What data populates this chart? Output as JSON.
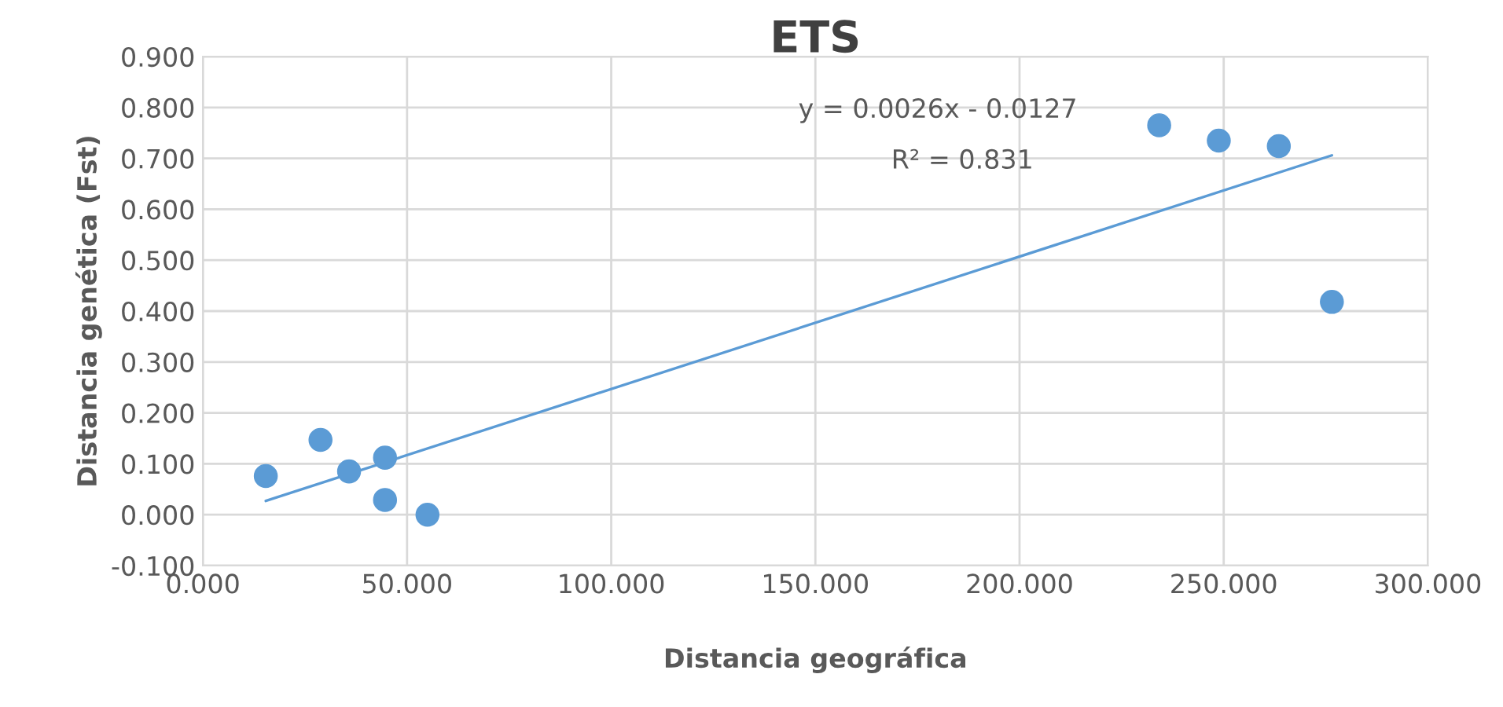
{
  "chart_data": {
    "type": "scatter",
    "title": "ETS",
    "xlabel": "Distancia geográfica",
    "ylabel": "Distancia genética (Fst)",
    "series": [
      {
        "color": "#5b9bd5",
        "marker": "circle",
        "x": [
          15.4,
          28.8,
          35.8,
          44.6,
          44.6,
          55.0,
          234.2,
          248.8,
          263.5,
          276.5
        ],
        "values": [
          0.076,
          0.147,
          0.085,
          0.112,
          0.029,
          0.0,
          0.765,
          0.735,
          0.724,
          0.418
        ]
      },
      {
        "type": "line",
        "marker": "none",
        "color": "#5b9bd5",
        "x": [
          15.4,
          276.5
        ],
        "values": [
          0.027,
          0.706
        ]
      }
    ],
    "annotations": [
      "y = 0.0026x - 0.0127",
      "R² = 0.831"
    ],
    "xlim": [
      0,
      300
    ],
    "xticks": [
      {
        "value": 0,
        "label": "0.000"
      },
      {
        "value": 50,
        "label": "50.000"
      },
      {
        "value": 100,
        "label": "100.000"
      },
      {
        "value": 150,
        "label": "150.000"
      },
      {
        "value": 200,
        "label": "200.000"
      },
      {
        "value": 250,
        "label": "250.000"
      },
      {
        "value": 300,
        "label": "300.000"
      }
    ],
    "ylim": [
      -0.1,
      0.9
    ],
    "yticks": [
      {
        "value": -0.1,
        "label": "-0.100"
      },
      {
        "value": 0,
        "label": "0.000"
      },
      {
        "value": 0.1,
        "label": "0.100"
      },
      {
        "value": 0.2,
        "label": "0.200"
      },
      {
        "value": 0.3,
        "label": "0.300"
      },
      {
        "value": 0.4,
        "label": "0.400"
      },
      {
        "value": 0.5,
        "label": "0.500"
      },
      {
        "value": 0.6,
        "label": "0.600"
      },
      {
        "value": 0.7,
        "label": "0.700"
      },
      {
        "value": 0.8,
        "label": "0.800"
      },
      {
        "value": 0.9,
        "label": "0.900"
      }
    ],
    "grid": true
  }
}
